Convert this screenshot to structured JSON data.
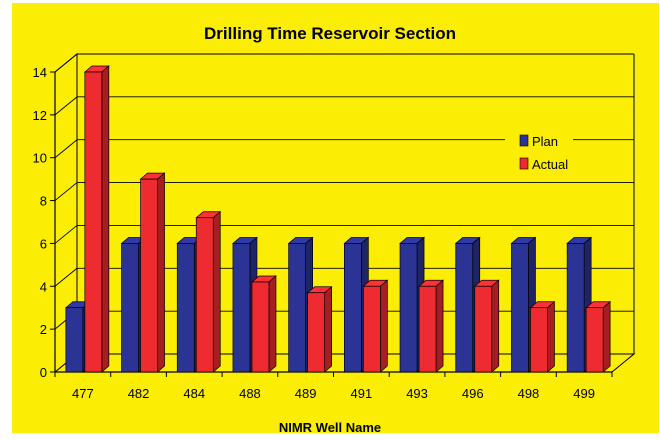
{
  "chart_data": {
    "type": "bar",
    "title": "Drilling Time Reservoir Section",
    "xlabel": "NIMR Well Name",
    "ylabel": "",
    "categories": [
      "477",
      "482",
      "484",
      "488",
      "489",
      "491",
      "493",
      "496",
      "498",
      "499"
    ],
    "series": [
      {
        "name": "Plan",
        "values": [
          3,
          6,
          6,
          6,
          6,
          6,
          6,
          6,
          6,
          6
        ]
      },
      {
        "name": "Actual",
        "values": [
          14,
          9,
          7.2,
          4.2,
          3.7,
          4,
          4,
          4,
          3,
          3
        ]
      }
    ],
    "ylim": [
      0,
      14
    ],
    "yticks": [
      "0",
      "2",
      "4",
      "6",
      "8",
      "10",
      "12",
      "14"
    ],
    "grid": true,
    "legend_position": "right",
    "style": "3d-bar",
    "colors": {
      "background": "#FBEE04",
      "plan": "#2B3494",
      "actual": "#EE2B30",
      "grid": "#000000"
    }
  }
}
